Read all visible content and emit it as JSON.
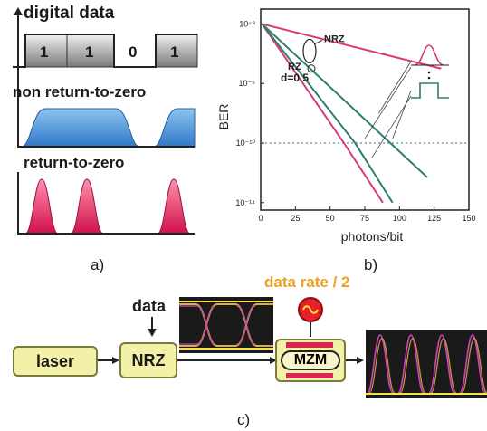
{
  "panel_a": {
    "title": "digital data",
    "bits": [
      "1",
      "1",
      "0",
      "1"
    ],
    "nrz_label": "non return-to-zero",
    "rz_label": "return-to-zero",
    "caption": "a)"
  },
  "panel_b": {
    "caption": "b)",
    "chart_data": {
      "type": "line",
      "xlabel": "photons/bit",
      "ylabel": "BER",
      "xlim": [
        0,
        150
      ],
      "x_ticks": [
        "0",
        "25",
        "50",
        "75",
        "100",
        "125",
        "150"
      ],
      "y_ticks": [
        "10⁻²",
        "10⁻⁶",
        "10⁻¹⁰",
        "10⁻¹⁴"
      ],
      "y_log": true,
      "threshold_line": 1e-10,
      "annotations": [
        "NRZ",
        "RZ",
        "d=0.5"
      ],
      "series": [
        {
          "color": "#d63a7a",
          "points": [
            [
              1,
              0.01
            ],
            [
              60,
              1e-10
            ],
            [
              88,
              1e-14
            ]
          ]
        },
        {
          "color": "#2f7d6e",
          "points": [
            [
              1,
              0.01
            ],
            [
              68,
              1e-10
            ],
            [
              95,
              1e-14
            ]
          ]
        },
        {
          "color": "#d63a7a",
          "points": [
            [
              1,
              0.01
            ],
            [
              130,
              1e-05
            ]
          ]
        },
        {
          "color": "#2f7d6e",
          "points": [
            [
              1,
              0.01
            ],
            [
              120,
              5e-13
            ]
          ]
        }
      ]
    }
  },
  "panel_c": {
    "data_label": "data",
    "rate_label": "data rate / 2",
    "laser_label": "laser",
    "nrz_label": "NRZ",
    "mzm_label": "MZM",
    "caption": "c)"
  },
  "colors": {
    "nrz_fill": "#3f8fd6",
    "rz_fill": "#e0205a",
    "box_fill": "#f3f0a8",
    "rate_label": "#f0a020",
    "eye_bg": "#1a1a1a"
  }
}
